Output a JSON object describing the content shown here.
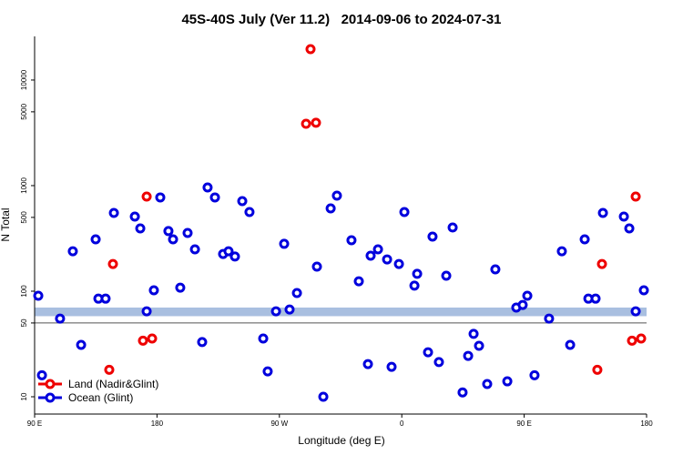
{
  "chart_data": {
    "type": "scatter",
    "title": "45S-40S July (Ver 11.2)   2014-09-06 to 2024-07-31",
    "xlabel": "Longitude (deg E)",
    "ylabel": "N Total",
    "xlim": [
      90,
      540
    ],
    "ylim": [
      6.86,
      25900
    ],
    "log_y": true,
    "xticks": [
      {
        "value": 90,
        "label": "90 E"
      },
      {
        "value": 180,
        "label": "180"
      },
      {
        "value": 270,
        "label": "90 W"
      },
      {
        "value": 360,
        "label": "0"
      },
      {
        "value": 450,
        "label": "90 E"
      },
      {
        "value": 540,
        "label": "180"
      }
    ],
    "yticks": [
      10,
      50,
      100,
      500,
      1000,
      5000,
      10000
    ],
    "hline": 50,
    "band": [
      58,
      70
    ],
    "band_color": "#a9bfe0",
    "legend": "lower left",
    "series": [
      {
        "name": "Land (Nadir&Glint)",
        "color": "#ee0000",
        "x": [
          172.4,
          147.6,
          169.7,
          176.4,
          144.9,
          292.9,
          289.6,
          296.9,
          532,
          507.2,
          529.3,
          536,
          503.8
        ],
        "values": [
          788,
          181,
          34,
          35.6,
          18,
          19600,
          3850,
          3940,
          788,
          181,
          34,
          35.6,
          18
        ]
      },
      {
        "name": "Ocean (Glint)",
        "color": "#0000dd",
        "x": [
          92.7,
          95.4,
          108.7,
          118.1,
          124.2,
          134.9,
          136.9,
          142.2,
          148.3,
          163.7,
          167.7,
          172.4,
          177.7,
          182.4,
          188.4,
          191.8,
          197.1,
          202.5,
          207.9,
          213.2,
          217.2,
          222.6,
          228.6,
          232.6,
          237.3,
          242.7,
          248,
          258.1,
          261.4,
          267.5,
          273.5,
          277.5,
          282.9,
          297.6,
          302.3,
          307.7,
          312.3,
          323,
          328.4,
          335.1,
          337.1,
          342.5,
          349.2,
          352.5,
          357.9,
          361.9,
          369.3,
          371.3,
          379.3,
          382.6,
          387.3,
          392.7,
          397.4,
          404.7,
          408.8,
          412.8,
          416.8,
          422.8,
          428.8,
          437.6,
          444.2,
          448.9,
          452.3,
          457.6,
          468.3,
          477.7,
          483.8,
          494.5,
          497.2,
          502.5,
          507.9,
          523.3,
          527.3,
          532,
          538
        ],
        "values": [
          90.6,
          16,
          55,
          239,
          31,
          310,
          85,
          85,
          551,
          509,
          393,
          64.5,
          102,
          773,
          371,
          310,
          108,
          356,
          249,
          33,
          961,
          773,
          225,
          239,
          213,
          713,
          562,
          35.6,
          17.4,
          64.5,
          281,
          67,
          96,
          171,
          10,
          609,
          803,
          304,
          124,
          20.4,
          217,
          249,
          200,
          19.2,
          181,
          562,
          113,
          146,
          26.4,
          329,
          21.3,
          140,
          401,
          11,
          24.4,
          39.4,
          30.4,
          13.2,
          161,
          14,
          70,
          74,
          90.6,
          16,
          55,
          239,
          31,
          310,
          85,
          85,
          551,
          509,
          393,
          64.5,
          102
        ]
      }
    ]
  }
}
